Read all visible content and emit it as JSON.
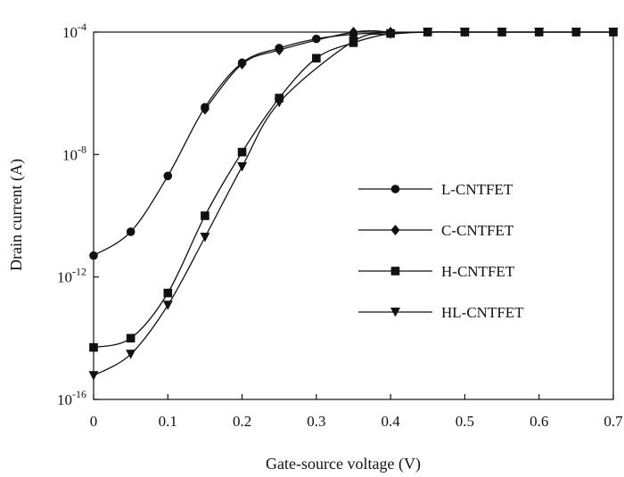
{
  "chart_data": {
    "type": "line",
    "title": "",
    "xlabel": "Gate-source voltage (V)",
    "ylabel": "Drain current (A)",
    "x_scale": "linear",
    "y_scale": "log",
    "xlim": [
      0,
      0.7
    ],
    "ylim": [
      1e-16,
      0.0001
    ],
    "x_ticks": [
      0,
      0.1,
      0.2,
      0.3,
      0.4,
      0.5,
      0.6,
      0.7
    ],
    "x_tick_labels": [
      "0",
      "0.1",
      "0.2",
      "0.3",
      "0.4",
      "0.5",
      "0.6",
      "0.7"
    ],
    "y_ticks": [
      {
        "value": 0.0001,
        "base": "10",
        "exp": "-4"
      },
      {
        "value": 1e-08,
        "base": "10",
        "exp": "-8"
      },
      {
        "value": 1e-12,
        "base": "10",
        "exp": "-12"
      },
      {
        "value": 1e-16,
        "base": "10",
        "exp": "-16"
      }
    ],
    "grid": false,
    "legend_position": "right-center",
    "x": [
      0,
      0.05,
      0.1,
      0.15,
      0.2,
      0.25,
      0.3,
      0.35,
      0.4,
      0.45,
      0.5,
      0.55,
      0.6,
      0.65,
      0.7
    ],
    "series": [
      {
        "name": "L-CNTFET",
        "marker": "circle",
        "values": [
          5e-12,
          3e-11,
          2e-09,
          3.5e-07,
          1e-05,
          3e-05,
          6e-05,
          8.5e-05,
          9.5e-05,
          0.0001,
          0.0001,
          0.0001,
          0.0001,
          0.0001,
          0.0001
        ]
      },
      {
        "name": "C-CNTFET",
        "marker": "diamond",
        "values": [
          null,
          null,
          null,
          3e-07,
          9e-06,
          2.6e-05,
          null,
          0.0001,
          0.0001,
          null,
          null,
          null,
          null,
          null,
          null
        ]
      },
      {
        "name": "H-CNTFET",
        "marker": "square",
        "values": [
          5e-15,
          1e-14,
          3e-13,
          1e-10,
          1.2e-08,
          7e-07,
          1.4e-05,
          4.5e-05,
          9e-05,
          0.0001,
          0.0001,
          0.0001,
          0.0001,
          0.0001,
          0.0001
        ]
      },
      {
        "name": "HL-CNTFET",
        "marker": "triangle-down",
        "values": [
          6e-16,
          3e-15,
          1.2e-13,
          2e-11,
          4e-09,
          5e-07,
          null,
          5e-05,
          8.5e-05,
          0.0001,
          0.0001,
          0.0001,
          0.0001,
          0.0001,
          0.0001
        ]
      }
    ]
  }
}
